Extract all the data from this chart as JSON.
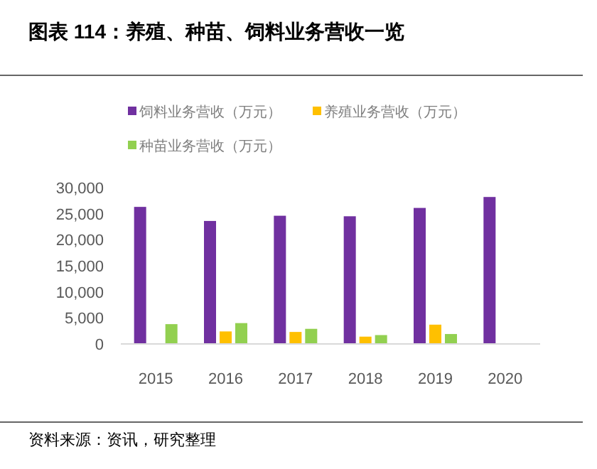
{
  "chart_data": {
    "type": "bar",
    "title": "图表 114：养殖、种苗、饲料业务营收一览",
    "categories": [
      "2015",
      "2016",
      "2017",
      "2018",
      "2019",
      "2020"
    ],
    "series": [
      {
        "name": "饲料业务营收（万元）",
        "color": "#7030a0",
        "values": [
          26300,
          23600,
          24600,
          24500,
          26100,
          28200
        ]
      },
      {
        "name": "养殖业务营收（万元）",
        "color": "#ffc000",
        "values": [
          null,
          2400,
          2300,
          1400,
          3700,
          null
        ]
      },
      {
        "name": "种苗业务营收（万元）",
        "color": "#92d050",
        "values": [
          3800,
          4000,
          2900,
          1700,
          1900,
          null
        ]
      }
    ],
    "ylim": [
      0,
      30000
    ],
    "yticks": [
      {
        "value": 0,
        "label": "0"
      },
      {
        "value": 5000,
        "label": "5,000"
      },
      {
        "value": 10000,
        "label": "10,000"
      },
      {
        "value": 15000,
        "label": "15,000"
      },
      {
        "value": 20000,
        "label": "20,000"
      },
      {
        "value": 25000,
        "label": "25,000"
      },
      {
        "value": 30000,
        "label": "30,000"
      }
    ],
    "grid": false,
    "legend": "top",
    "annotations": [
      "资料来源：资讯，研究整理"
    ]
  }
}
